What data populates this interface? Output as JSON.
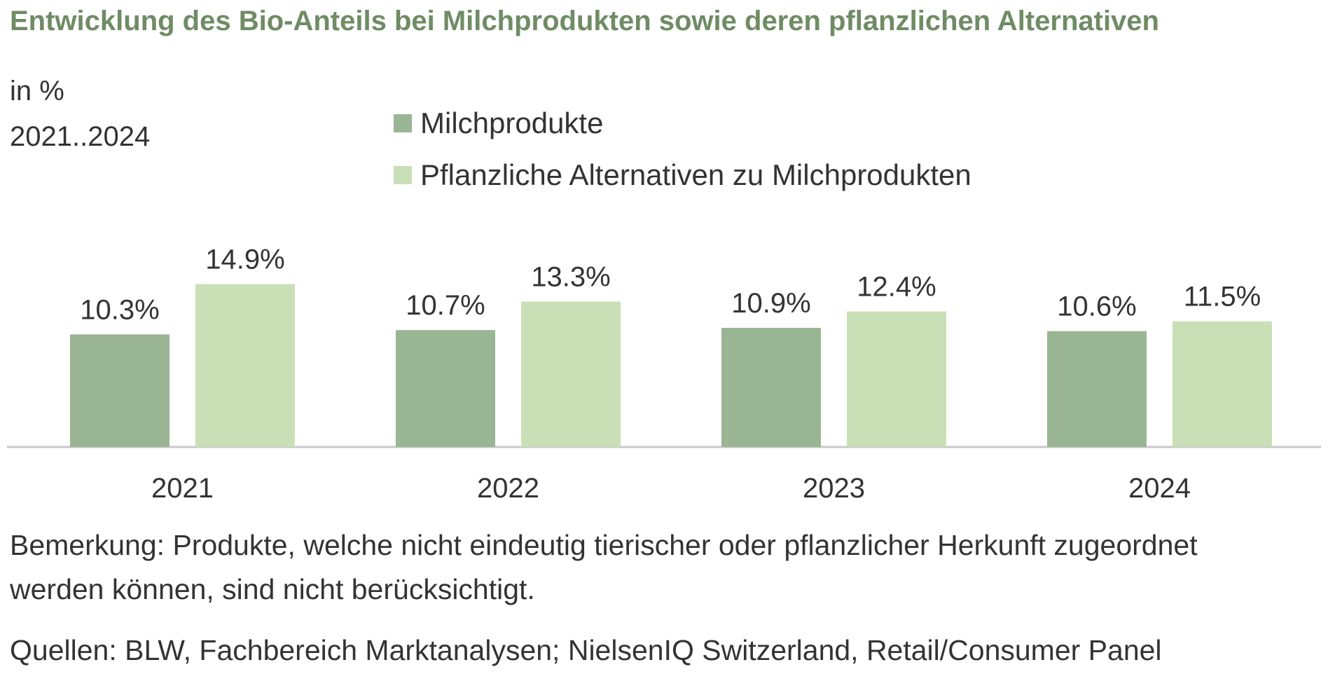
{
  "title": "Entwicklung des Bio-Anteils bei Milchprodukten sowie deren pflanzlichen Alternativen",
  "unit_label": "in %",
  "period_label": "2021..2024",
  "colors": {
    "title": "#6f8c64",
    "series_1": "#9ab594",
    "series_2": "#c9e0b6",
    "axis": "#c8c8c8",
    "text": "#333333"
  },
  "chart_data": {
    "type": "bar",
    "title": "Entwicklung des Bio-Anteils bei Milchprodukten sowie deren pflanzlichen Alternativen",
    "ylabel": "in %",
    "xlabel": "",
    "categories": [
      "2021",
      "2022",
      "2023",
      "2024"
    ],
    "series": [
      {
        "name": "Milchprodukte",
        "values": [
          10.3,
          10.7,
          10.9,
          10.6
        ],
        "labels": [
          "10.3%",
          "10.7%",
          "10.9%",
          "10.6%"
        ]
      },
      {
        "name": "Pflanzliche Alternativen zu Milchprodukten",
        "values": [
          14.9,
          13.3,
          12.4,
          11.5
        ],
        "labels": [
          "14.9%",
          "13.3%",
          "12.4%",
          "11.5%"
        ]
      }
    ],
    "ylim": [
      0,
      20
    ],
    "grid": false,
    "legend_position": "top"
  },
  "notes": {
    "remark_line1": "Bemerkung: Produkte, welche nicht eindeutig tierischer oder pflanzlicher Herkunft zugeordnet",
    "remark_line2": "werden können, sind nicht berücksichtigt.",
    "sources": "Quellen: BLW, Fachbereich Marktanalysen; NielsenIQ Switzerland, Retail/Consumer Panel"
  }
}
